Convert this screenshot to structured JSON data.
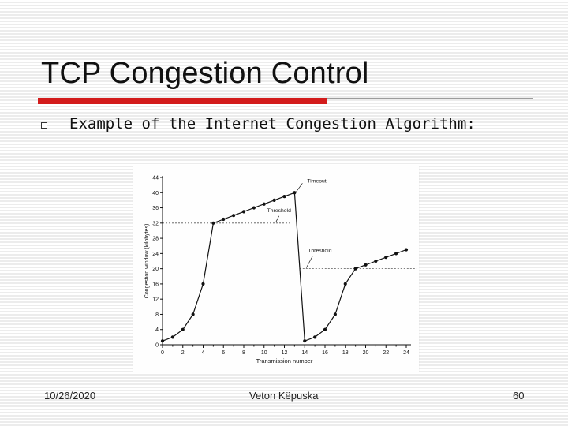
{
  "slide": {
    "title": "TCP Congestion Control",
    "bullet": "Example of the Internet Congestion Algorithm:"
  },
  "footer": {
    "date": "10/26/2020",
    "author": "Veton Këpuska",
    "page": "60"
  },
  "colors": {
    "accent": "#d31c1c",
    "rule": "#9c9c9c",
    "plot": "#111111"
  },
  "chart_data": {
    "type": "line",
    "xlabel": "Transmission number",
    "ylabel": "Congestion window (kilobytes)",
    "xlim": [
      0,
      24
    ],
    "ylim": [
      0,
      44
    ],
    "x_ticks": [
      0,
      2,
      4,
      6,
      8,
      10,
      12,
      14,
      16,
      18,
      20,
      22,
      24
    ],
    "y_ticks": [
      0,
      4,
      8,
      12,
      16,
      20,
      24,
      28,
      32,
      36,
      40,
      44
    ],
    "series": [
      {
        "x": [
          0,
          1,
          2,
          3,
          4,
          5,
          6,
          7,
          8,
          9,
          10,
          11,
          12,
          13,
          14,
          15,
          16,
          17,
          18,
          19,
          20,
          21,
          22,
          23,
          24
        ],
        "y": [
          1,
          2,
          4,
          8,
          16,
          32,
          33,
          34,
          35,
          36,
          37,
          38,
          39,
          40,
          1,
          2,
          4,
          8,
          16,
          20,
          21,
          22,
          23,
          24,
          25
        ]
      }
    ],
    "thresholds": [
      {
        "label": "Threshold",
        "y": 32,
        "x_range": [
          0,
          12.5
        ]
      },
      {
        "label": "Threshold",
        "y": 20,
        "x_range": [
          13.5,
          25
        ]
      }
    ],
    "annotations": [
      {
        "text": "Timeout",
        "x": 13,
        "y": 40
      },
      {
        "text": "Threshold",
        "x": 11,
        "y": 32
      },
      {
        "text": "Threshold",
        "x": 14,
        "y": 20
      }
    ],
    "grid": false
  }
}
